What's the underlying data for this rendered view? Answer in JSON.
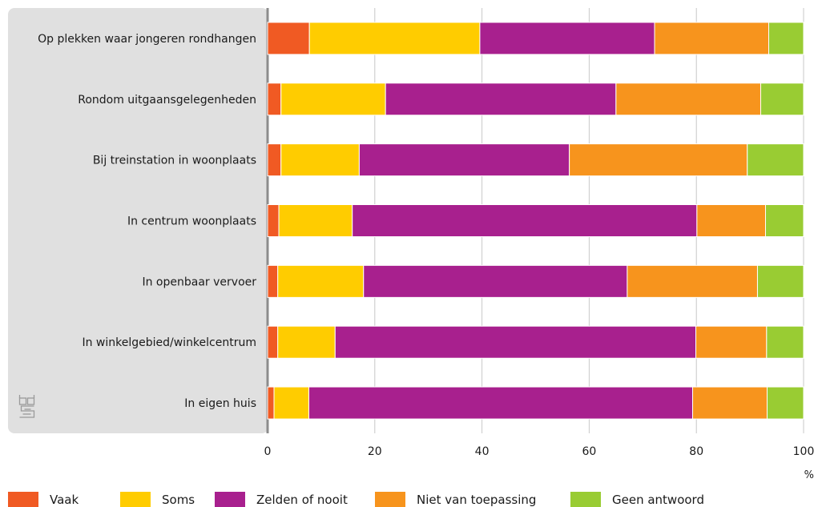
{
  "chart_data": {
    "type": "bar",
    "orientation": "horizontal",
    "stacked": true,
    "categories": [
      "Op plekken waar jongeren rondhangen",
      "Rondom uitgaansgelegenheden",
      "Bij treinstation in woonplaats",
      "In centrum woonplaats",
      "In openbaar vervoer",
      "In winkelgebied/winkelcentrum",
      "In eigen huis"
    ],
    "series": [
      {
        "name": "Vaak",
        "color": "#f05a23",
        "values": [
          7.8,
          2.5,
          2.5,
          2.1,
          1.9,
          1.9,
          1.2
        ]
      },
      {
        "name": "Soms",
        "color": "#ffcc00",
        "values": [
          31.8,
          19.5,
          14.6,
          13.7,
          16.0,
          10.7,
          6.5
        ]
      },
      {
        "name": "Zelden of nooit",
        "color": "#a8208e",
        "values": [
          32.6,
          43.0,
          39.2,
          64.3,
          49.2,
          67.3,
          71.6
        ]
      },
      {
        "name": "Niet van toepassing",
        "color": "#f7941d",
        "values": [
          21.3,
          27.0,
          33.2,
          12.8,
          24.3,
          13.2,
          13.9
        ]
      },
      {
        "name": "Geen antwoord",
        "color": "#99cc33",
        "values": [
          6.5,
          8.0,
          10.5,
          7.1,
          8.6,
          6.9,
          6.8
        ]
      }
    ],
    "xlim": [
      0,
      100
    ],
    "xticks": [
      0,
      20,
      40,
      60,
      80,
      100
    ],
    "xunit": "%",
    "grid": "vertical",
    "legend": "bottom",
    "logo_icon": "cbs-logo-icon"
  }
}
